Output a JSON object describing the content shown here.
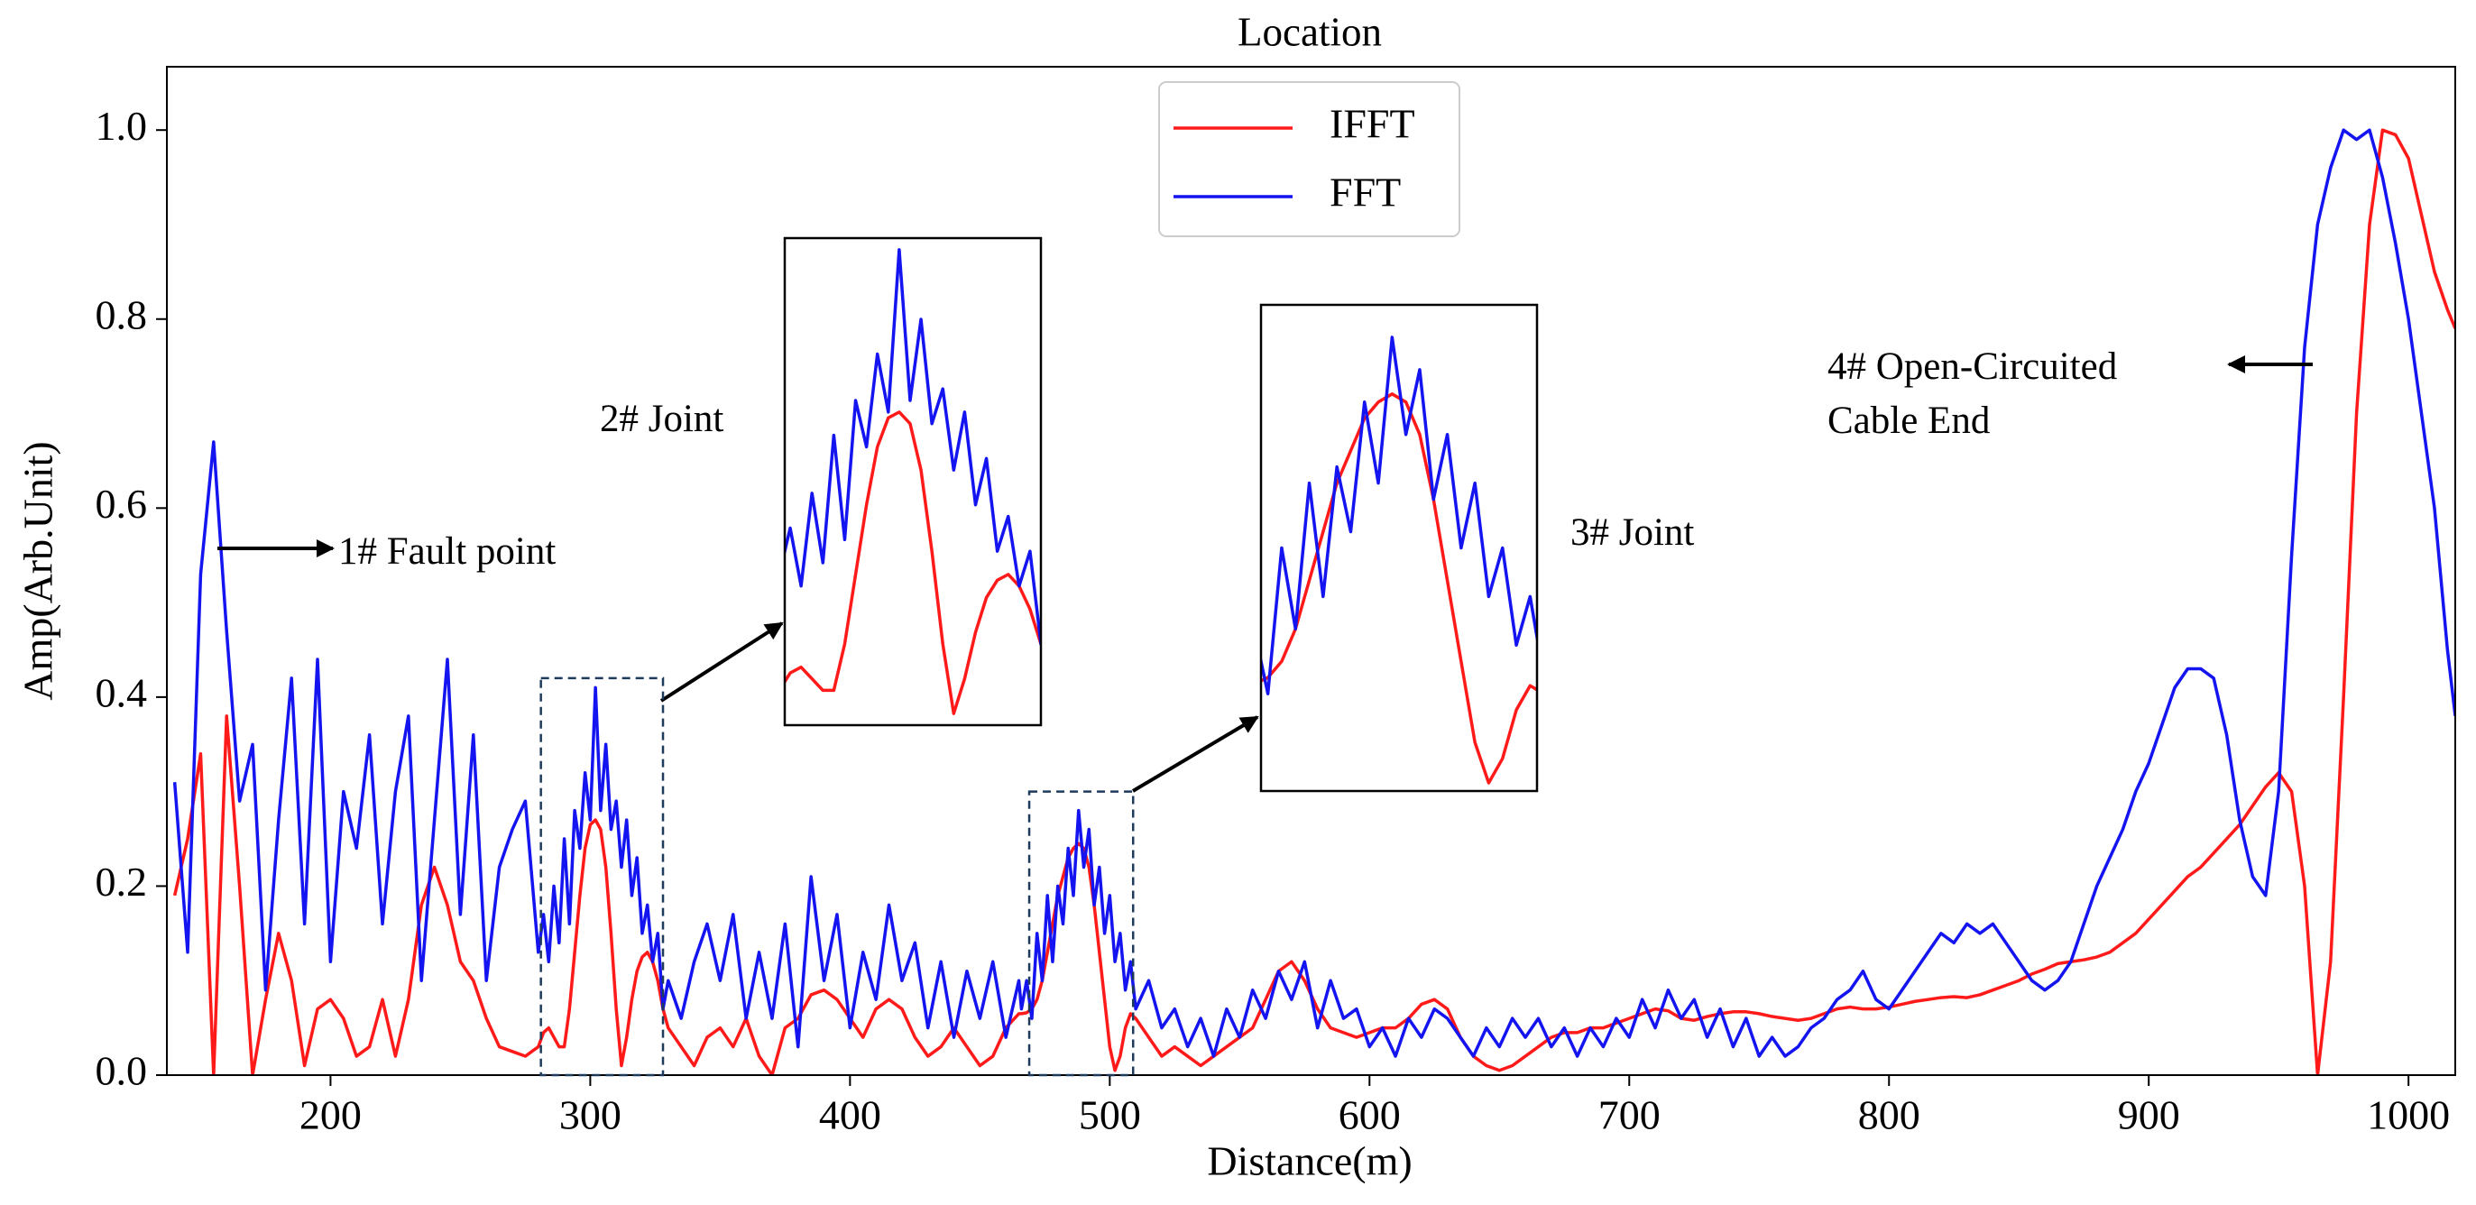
{
  "chart_data": {
    "type": "line",
    "title": "Location",
    "xlabel": "Distance(m)",
    "ylabel": "Amp(Arb.Unit)",
    "xlim": [
      137,
      1018
    ],
    "ylim": [
      0,
      1.067
    ],
    "xticks": [
      200,
      300,
      400,
      500,
      600,
      700,
      800,
      900,
      1000
    ],
    "yticks": [
      {
        "value": 0,
        "label": "0.0"
      },
      {
        "value": 0.2,
        "label": "0.2"
      },
      {
        "value": 0.4,
        "label": "0.4"
      },
      {
        "value": 0.6,
        "label": "0.6"
      },
      {
        "value": 0.8,
        "label": "0.8"
      },
      {
        "value": 1,
        "label": "1.0"
      }
    ],
    "grid": false,
    "legend": "upper center",
    "x": [
      140,
      145,
      150,
      155,
      160,
      165,
      170,
      175,
      180,
      185,
      190,
      195,
      200,
      205,
      210,
      215,
      220,
      225,
      230,
      235,
      240,
      245,
      250,
      255,
      260,
      265,
      270,
      275,
      280,
      282,
      284,
      286,
      288,
      290,
      292,
      294,
      296,
      298,
      300,
      302,
      304,
      306,
      308,
      310,
      312,
      314,
      316,
      318,
      320,
      322,
      324,
      326,
      328,
      330,
      335,
      340,
      345,
      350,
      355,
      360,
      365,
      370,
      375,
      380,
      385,
      390,
      395,
      400,
      405,
      410,
      415,
      420,
      425,
      430,
      435,
      440,
      445,
      450,
      455,
      460,
      465,
      466,
      468,
      470,
      472,
      474,
      476,
      478,
      480,
      482,
      484,
      486,
      488,
      490,
      492,
      494,
      496,
      498,
      500,
      502,
      504,
      506,
      508,
      510,
      515,
      520,
      525,
      530,
      535,
      540,
      545,
      550,
      555,
      560,
      565,
      570,
      575,
      580,
      585,
      590,
      595,
      600,
      605,
      610,
      615,
      620,
      625,
      630,
      635,
      640,
      645,
      650,
      655,
      660,
      665,
      670,
      675,
      680,
      685,
      690,
      695,
      700,
      705,
      710,
      715,
      720,
      725,
      730,
      735,
      740,
      745,
      750,
      755,
      760,
      765,
      770,
      775,
      780,
      785,
      790,
      795,
      800,
      805,
      810,
      815,
      820,
      825,
      830,
      835,
      840,
      845,
      850,
      855,
      860,
      865,
      870,
      875,
      880,
      885,
      890,
      895,
      900,
      905,
      910,
      915,
      920,
      925,
      930,
      935,
      940,
      945,
      950,
      955,
      960,
      965,
      970,
      975,
      980,
      985,
      990,
      995,
      1000,
      1005,
      1010,
      1015,
      1018
    ],
    "series": [
      {
        "name": "IFFT",
        "color": "#ff1a1a",
        "values": [
          0.19,
          0.25,
          0.34,
          0.0,
          0.38,
          0.2,
          0.0,
          0.08,
          0.15,
          0.1,
          0.01,
          0.07,
          0.08,
          0.06,
          0.02,
          0.03,
          0.08,
          0.02,
          0.08,
          0.18,
          0.22,
          0.18,
          0.12,
          0.1,
          0.06,
          0.03,
          0.025,
          0.02,
          0.03,
          0.045,
          0.05,
          0.04,
          0.03,
          0.03,
          0.07,
          0.13,
          0.19,
          0.24,
          0.265,
          0.27,
          0.26,
          0.22,
          0.15,
          0.07,
          0.01,
          0.04,
          0.08,
          0.11,
          0.125,
          0.13,
          0.12,
          0.1,
          0.07,
          0.05,
          0.03,
          0.01,
          0.04,
          0.05,
          0.03,
          0.06,
          0.02,
          0.0,
          0.05,
          0.06,
          0.085,
          0.09,
          0.08,
          0.06,
          0.04,
          0.07,
          0.08,
          0.07,
          0.04,
          0.02,
          0.03,
          0.05,
          0.03,
          0.01,
          0.02,
          0.05,
          0.065,
          0.065,
          0.066,
          0.07,
          0.08,
          0.1,
          0.13,
          0.16,
          0.19,
          0.21,
          0.23,
          0.24,
          0.245,
          0.24,
          0.22,
          0.18,
          0.13,
          0.08,
          0.03,
          0.005,
          0.02,
          0.05,
          0.065,
          0.06,
          0.04,
          0.02,
          0.03,
          0.02,
          0.01,
          0.02,
          0.03,
          0.04,
          0.05,
          0.08,
          0.11,
          0.12,
          0.1,
          0.07,
          0.05,
          0.045,
          0.04,
          0.045,
          0.05,
          0.05,
          0.06,
          0.075,
          0.08,
          0.07,
          0.04,
          0.02,
          0.01,
          0.005,
          0.01,
          0.02,
          0.03,
          0.04,
          0.045,
          0.045,
          0.05,
          0.05,
          0.055,
          0.06,
          0.065,
          0.07,
          0.068,
          0.06,
          0.058,
          0.062,
          0.065,
          0.067,
          0.067,
          0.065,
          0.062,
          0.06,
          0.058,
          0.06,
          0.065,
          0.07,
          0.072,
          0.07,
          0.07,
          0.072,
          0.075,
          0.078,
          0.08,
          0.082,
          0.083,
          0.082,
          0.085,
          0.09,
          0.095,
          0.1,
          0.107,
          0.112,
          0.118,
          0.12,
          0.122,
          0.125,
          0.13,
          0.14,
          0.15,
          0.165,
          0.18,
          0.195,
          0.21,
          0.22,
          0.235,
          0.25,
          0.265,
          0.285,
          0.305,
          0.32,
          0.3,
          0.2,
          0.0,
          0.12,
          0.4,
          0.7,
          0.9,
          1.0,
          0.995,
          0.97,
          0.91,
          0.85,
          0.81,
          0.79
        ]
      },
      {
        "name": "FFT",
        "color": "#1414f0",
        "values": [
          0.31,
          0.13,
          0.53,
          0.67,
          0.47,
          0.29,
          0.35,
          0.09,
          0.27,
          0.42,
          0.16,
          0.44,
          0.12,
          0.3,
          0.24,
          0.36,
          0.16,
          0.3,
          0.38,
          0.1,
          0.27,
          0.44,
          0.17,
          0.36,
          0.1,
          0.22,
          0.26,
          0.29,
          0.13,
          0.17,
          0.12,
          0.2,
          0.14,
          0.25,
          0.16,
          0.28,
          0.24,
          0.32,
          0.27,
          0.41,
          0.28,
          0.35,
          0.26,
          0.29,
          0.22,
          0.27,
          0.19,
          0.23,
          0.15,
          0.18,
          0.12,
          0.15,
          0.07,
          0.1,
          0.06,
          0.12,
          0.16,
          0.1,
          0.17,
          0.06,
          0.13,
          0.06,
          0.16,
          0.03,
          0.21,
          0.1,
          0.17,
          0.05,
          0.13,
          0.08,
          0.18,
          0.1,
          0.14,
          0.05,
          0.12,
          0.04,
          0.11,
          0.06,
          0.12,
          0.04,
          0.1,
          0.07,
          0.1,
          0.06,
          0.15,
          0.1,
          0.19,
          0.12,
          0.2,
          0.16,
          0.24,
          0.19,
          0.28,
          0.22,
          0.26,
          0.18,
          0.22,
          0.15,
          0.19,
          0.12,
          0.15,
          0.09,
          0.12,
          0.07,
          0.1,
          0.05,
          0.07,
          0.03,
          0.06,
          0.02,
          0.07,
          0.04,
          0.09,
          0.06,
          0.11,
          0.08,
          0.12,
          0.05,
          0.1,
          0.06,
          0.07,
          0.03,
          0.05,
          0.02,
          0.06,
          0.04,
          0.07,
          0.06,
          0.04,
          0.02,
          0.05,
          0.03,
          0.06,
          0.04,
          0.06,
          0.03,
          0.05,
          0.02,
          0.05,
          0.03,
          0.06,
          0.04,
          0.08,
          0.05,
          0.09,
          0.06,
          0.08,
          0.04,
          0.07,
          0.03,
          0.06,
          0.02,
          0.04,
          0.02,
          0.03,
          0.05,
          0.06,
          0.08,
          0.09,
          0.11,
          0.08,
          0.07,
          0.09,
          0.11,
          0.13,
          0.15,
          0.14,
          0.16,
          0.15,
          0.16,
          0.14,
          0.12,
          0.1,
          0.09,
          0.1,
          0.12,
          0.16,
          0.2,
          0.23,
          0.26,
          0.3,
          0.33,
          0.37,
          0.41,
          0.43,
          0.43,
          0.42,
          0.36,
          0.27,
          0.21,
          0.19,
          0.3,
          0.55,
          0.77,
          0.9,
          0.96,
          1.0,
          0.99,
          1.0,
          0.95,
          0.88,
          0.8,
          0.7,
          0.6,
          0.45,
          0.38
        ]
      }
    ],
    "annotations": [
      {
        "lines": [
          "1# Fault point"
        ]
      },
      {
        "lines": [
          "2# Joint"
        ]
      },
      {
        "lines": [
          "3# Joint"
        ]
      },
      {
        "lines": [
          "4# Open-Circuited",
          "Cable End"
        ]
      }
    ],
    "insets": [
      {
        "xlim": [
          281,
          328
        ],
        "ylim": [
          0,
          0.42
        ]
      },
      {
        "xlim": [
          469,
          509
        ],
        "ylim": [
          0,
          0.3
        ]
      }
    ]
  }
}
